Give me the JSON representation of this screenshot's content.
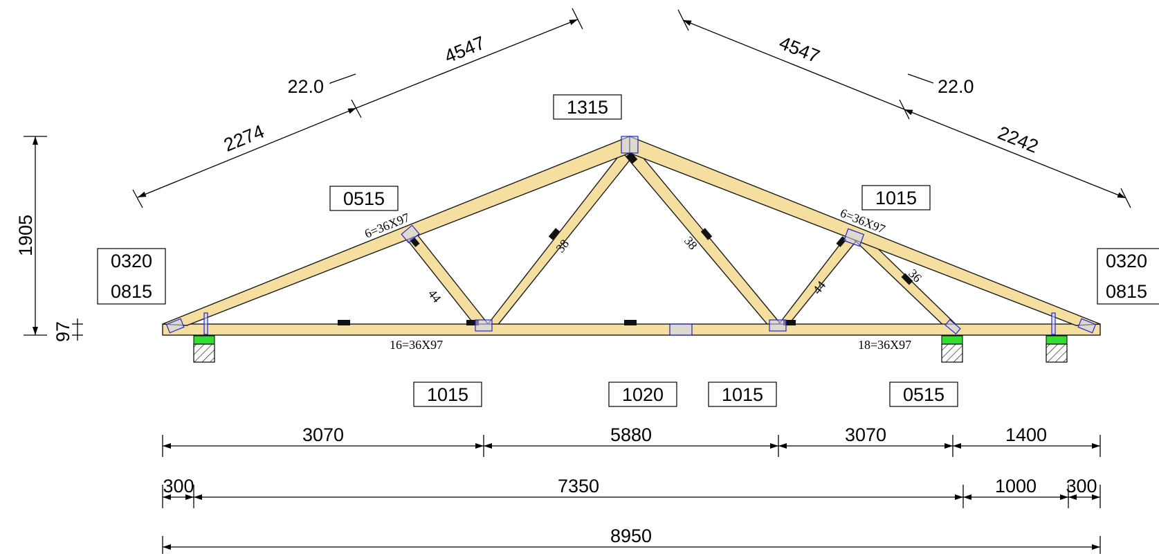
{
  "colors": {
    "timber_fill": "#f5dfa0",
    "timber_edge": "#1a1a1a",
    "plate": "#2424c8",
    "bearing_pad": "#33dd33",
    "text": "#000000"
  },
  "pitch": {
    "left": "22.0",
    "right": "22.0"
  },
  "top_chord_dims": {
    "left_total": "4547",
    "left_panel": "2274",
    "right_total": "4547",
    "right_panel": "2242"
  },
  "height_dims": {
    "total": "1905",
    "chord": "97"
  },
  "member_labels": {
    "top_left": "6=36X97",
    "top_right": "6=36X97",
    "bottom_left": "16=36X97",
    "bottom_right": "18=36X97",
    "web_a": "44",
    "web_b": "38",
    "web_c": "38",
    "web_d": "44",
    "web_e": "36"
  },
  "plate_labels": {
    "apex": "1315",
    "top_left": "0515",
    "top_right": "1015",
    "heel_left_1": "0320",
    "heel_left_2": "0815",
    "heel_right_1": "0320",
    "heel_right_2": "0815",
    "bottom_1": "1015",
    "bottom_2": "1020",
    "bottom_3": "1015",
    "bottom_4": "0515"
  },
  "bottom_dims": {
    "row1": [
      "3070",
      "5880",
      "3070",
      "1400"
    ],
    "row2": [
      "300",
      "7350",
      "1000",
      "300"
    ],
    "row3": "8950"
  }
}
